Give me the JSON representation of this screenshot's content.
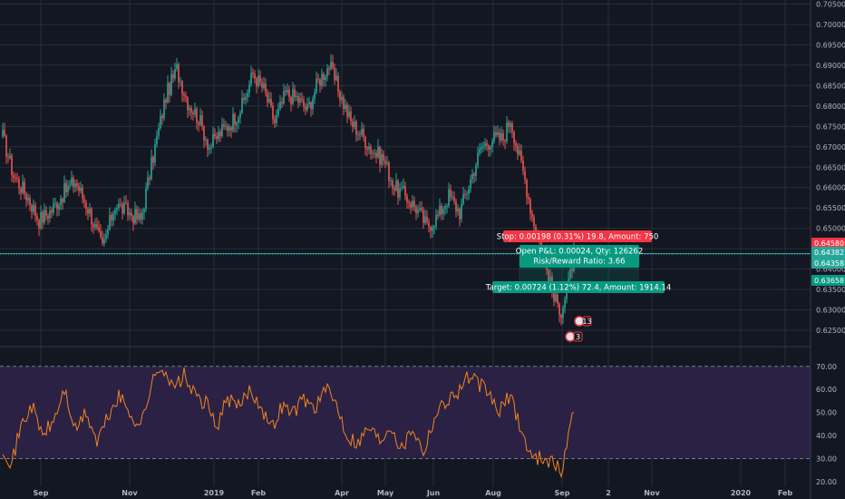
{
  "chart_data": [
    {
      "type": "candlestick",
      "role": "price",
      "x_ticks": [
        "Sep",
        "Nov",
        "2019",
        "Feb",
        "Apr",
        "May",
        "Jun",
        "Aug",
        "Sep",
        "2",
        "Nov",
        "2020",
        "Feb"
      ],
      "y_ticks": [
        "0.70500",
        "0.70000",
        "0.69500",
        "0.69000",
        "0.68500",
        "0.68000",
        "0.67500",
        "0.67000",
        "0.66500",
        "0.66000",
        "0.65500",
        "0.65000",
        "0.64500",
        "0.64000",
        "0.63500",
        "0.63000",
        "0.62500"
      ],
      "ylim": [
        0.621,
        0.706
      ],
      "grid": true,
      "up_color": "#26a69a",
      "down_color": "#ef5350",
      "anchors": [
        {
          "i": 0,
          "v": 0.6725
        },
        {
          "i": 6,
          "v": 0.663
        },
        {
          "i": 14,
          "v": 0.6575
        },
        {
          "i": 20,
          "v": 0.652
        },
        {
          "i": 27,
          "v": 0.6545
        },
        {
          "i": 34,
          "v": 0.659
        },
        {
          "i": 40,
          "v": 0.6615
        },
        {
          "i": 48,
          "v": 0.654
        },
        {
          "i": 55,
          "v": 0.645
        },
        {
          "i": 62,
          "v": 0.656
        },
        {
          "i": 69,
          "v": 0.654
        },
        {
          "i": 76,
          "v": 0.652
        },
        {
          "i": 84,
          "v": 0.67
        },
        {
          "i": 90,
          "v": 0.6825
        },
        {
          "i": 96,
          "v": 0.689
        },
        {
          "i": 102,
          "v": 0.681
        },
        {
          "i": 108,
          "v": 0.677
        },
        {
          "i": 114,
          "v": 0.67
        },
        {
          "i": 120,
          "v": 0.6735
        },
        {
          "i": 126,
          "v": 0.676
        },
        {
          "i": 132,
          "v": 0.68
        },
        {
          "i": 138,
          "v": 0.688
        },
        {
          "i": 144,
          "v": 0.684
        },
        {
          "i": 150,
          "v": 0.676
        },
        {
          "i": 156,
          "v": 0.683
        },
        {
          "i": 162,
          "v": 0.682
        },
        {
          "i": 168,
          "v": 0.679
        },
        {
          "i": 174,
          "v": 0.686
        },
        {
          "i": 180,
          "v": 0.69
        },
        {
          "i": 186,
          "v": 0.683
        },
        {
          "i": 192,
          "v": 0.676
        },
        {
          "i": 198,
          "v": 0.673
        },
        {
          "i": 204,
          "v": 0.669
        },
        {
          "i": 210,
          "v": 0.667
        },
        {
          "i": 216,
          "v": 0.66
        },
        {
          "i": 222,
          "v": 0.658
        },
        {
          "i": 228,
          "v": 0.655
        },
        {
          "i": 234,
          "v": 0.6505
        },
        {
          "i": 240,
          "v": 0.653
        },
        {
          "i": 246,
          "v": 0.658
        },
        {
          "i": 252,
          "v": 0.654
        },
        {
          "i": 258,
          "v": 0.662
        },
        {
          "i": 264,
          "v": 0.67
        },
        {
          "i": 270,
          "v": 0.672
        },
        {
          "i": 276,
          "v": 0.672
        },
        {
          "i": 280,
          "v": 0.677
        },
        {
          "i": 284,
          "v": 0.669
        },
        {
          "i": 288,
          "v": 0.662
        },
        {
          "i": 292,
          "v": 0.653
        },
        {
          "i": 296,
          "v": 0.647
        },
        {
          "i": 300,
          "v": 0.64
        },
        {
          "i": 304,
          "v": 0.6325
        },
        {
          "i": 308,
          "v": 0.63
        },
        {
          "i": 312,
          "v": 0.636
        },
        {
          "i": 315,
          "v": 0.6436
        }
      ],
      "stop_level": 0.6458,
      "entry_level": 0.64382,
      "last_price": 0.64358,
      "target_level": 0.63658,
      "stop_label": "Stop: 0.00198 (0.31%) 19.8, Amount: 750",
      "open_pl_label": "Open P&L: 0.00024, Qty: 126262",
      "risk_reward_label": "Risk/Reward Ratio: 3.66",
      "target_label": "Target: 0.00724 (1.12%) 72.4, Amount: 1914.14",
      "price_badges": [
        "0.64580",
        "0.64382",
        "0.64358",
        "0.63658"
      ],
      "event_markers": [
        "13",
        "3"
      ]
    },
    {
      "type": "line",
      "role": "oscillator",
      "y_ticks": [
        "70.00",
        "60.00",
        "50.00",
        "40.00",
        "30.00",
        "20.00"
      ],
      "ylim": [
        18,
        77
      ],
      "bands": [
        30,
        70
      ],
      "band_fill": "#2a2145",
      "line_color": "#f5841f",
      "anchors": [
        {
          "i": 0,
          "v": 35
        },
        {
          "i": 5,
          "v": 28
        },
        {
          "i": 10,
          "v": 44
        },
        {
          "i": 16,
          "v": 53
        },
        {
          "i": 22,
          "v": 40
        },
        {
          "i": 28,
          "v": 46
        },
        {
          "i": 34,
          "v": 60
        },
        {
          "i": 40,
          "v": 42
        },
        {
          "i": 46,
          "v": 50
        },
        {
          "i": 52,
          "v": 37
        },
        {
          "i": 58,
          "v": 48
        },
        {
          "i": 64,
          "v": 57
        },
        {
          "i": 70,
          "v": 50
        },
        {
          "i": 76,
          "v": 44
        },
        {
          "i": 82,
          "v": 62
        },
        {
          "i": 88,
          "v": 71
        },
        {
          "i": 94,
          "v": 60
        },
        {
          "i": 100,
          "v": 66
        },
        {
          "i": 106,
          "v": 57
        },
        {
          "i": 112,
          "v": 54
        },
        {
          "i": 118,
          "v": 44
        },
        {
          "i": 124,
          "v": 56
        },
        {
          "i": 130,
          "v": 52
        },
        {
          "i": 136,
          "v": 60
        },
        {
          "i": 142,
          "v": 54
        },
        {
          "i": 148,
          "v": 43
        },
        {
          "i": 154,
          "v": 53
        },
        {
          "i": 160,
          "v": 50
        },
        {
          "i": 166,
          "v": 56
        },
        {
          "i": 172,
          "v": 52
        },
        {
          "i": 178,
          "v": 60
        },
        {
          "i": 184,
          "v": 54
        },
        {
          "i": 190,
          "v": 40
        },
        {
          "i": 196,
          "v": 37
        },
        {
          "i": 202,
          "v": 44
        },
        {
          "i": 208,
          "v": 38
        },
        {
          "i": 214,
          "v": 45
        },
        {
          "i": 220,
          "v": 34
        },
        {
          "i": 226,
          "v": 44
        },
        {
          "i": 232,
          "v": 33
        },
        {
          "i": 238,
          "v": 48
        },
        {
          "i": 244,
          "v": 55
        },
        {
          "i": 250,
          "v": 58
        },
        {
          "i": 256,
          "v": 65
        },
        {
          "i": 262,
          "v": 63
        },
        {
          "i": 268,
          "v": 58
        },
        {
          "i": 274,
          "v": 50
        },
        {
          "i": 280,
          "v": 58
        },
        {
          "i": 286,
          "v": 42
        },
        {
          "i": 292,
          "v": 30
        },
        {
          "i": 298,
          "v": 31
        },
        {
          "i": 304,
          "v": 28
        },
        {
          "i": 308,
          "v": 24
        },
        {
          "i": 312,
          "v": 40
        },
        {
          "i": 315,
          "v": 52
        }
      ]
    }
  ],
  "colors": {
    "background": "#131722",
    "grid": "#2a2e39",
    "stop_badge": "#f23645",
    "entry_badge": "#26a69a",
    "target_badge": "#089981",
    "pl_box": "#089981"
  }
}
